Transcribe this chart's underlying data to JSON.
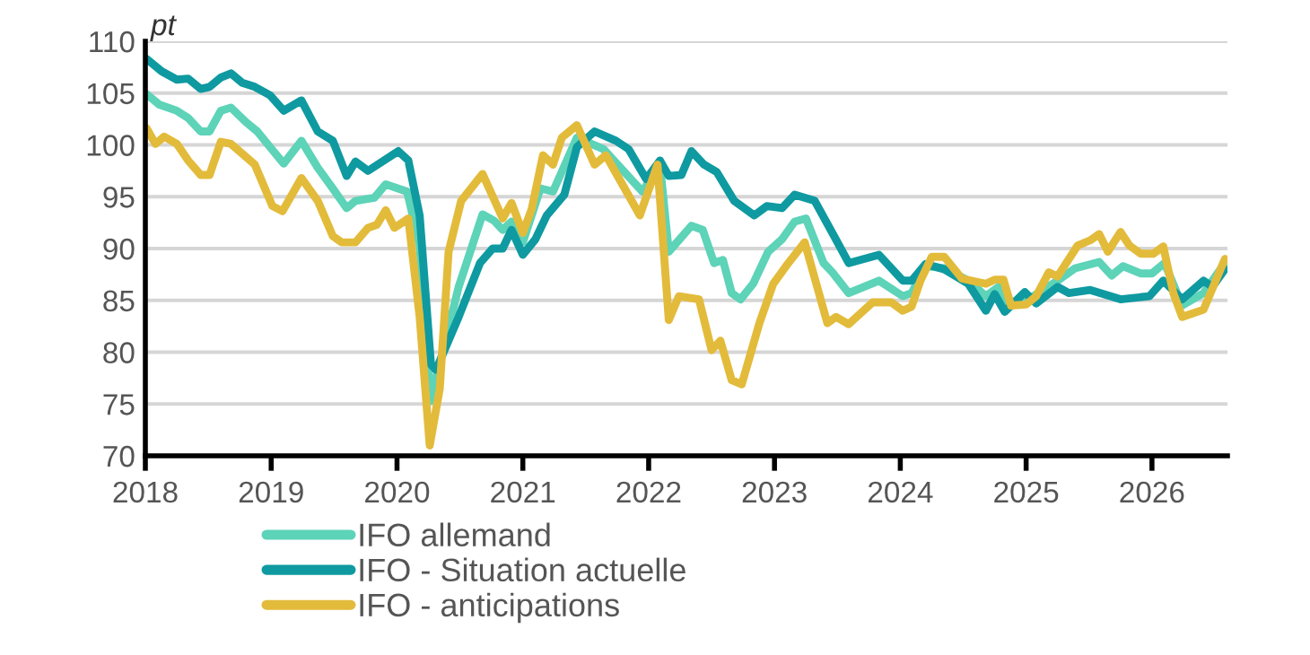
{
  "chart_data": {
    "type": "line",
    "ylabel": "pt",
    "xlim": [
      2018,
      2026.6
    ],
    "xticks": [
      {
        "value": 2018,
        "label": "2018"
      },
      {
        "value": 2019,
        "label": "2019"
      },
      {
        "value": 2020,
        "label": "2020"
      },
      {
        "value": 2021,
        "label": "2021"
      },
      {
        "value": 2022,
        "label": "2022"
      },
      {
        "value": 2023,
        "label": "2023"
      },
      {
        "value": 2024,
        "label": "2024"
      },
      {
        "value": 2025,
        "label": "2025"
      },
      {
        "value": 2026,
        "label": "2026"
      }
    ],
    "ylim": [
      70,
      110
    ],
    "yticks": [
      70,
      75,
      80,
      85,
      90,
      95,
      100,
      105,
      110
    ],
    "grid": "y",
    "legend": "bottom",
    "marker": "none",
    "line_style": "solid",
    "series": [
      {
        "name": "IFO allemand",
        "color": "#5dd3b8",
        "x": [
          2018.01,
          2018.11,
          2018.25,
          2018.34,
          2018.44,
          2018.51,
          2018.6,
          2018.68,
          2018.8,
          2018.89,
          2018.99,
          2019.1,
          2019.24,
          2019.37,
          2019.49,
          2019.6,
          2019.67,
          2019.82,
          2019.91,
          2020.08,
          2020.18,
          2020.27,
          2020.36,
          2020.49,
          2020.68,
          2020.77,
          2020.84,
          2020.91,
          2021.0,
          2021.14,
          2021.24,
          2021.43,
          2021.64,
          2021.95,
          2022.09,
          2022.16,
          2022.34,
          2022.43,
          2022.52,
          2022.59,
          2022.66,
          2022.73,
          2022.83,
          2022.95,
          2023.06,
          2023.16,
          2023.25,
          2023.39,
          2023.46,
          2023.59,
          2023.83,
          2024.02,
          2024.09,
          2024.2,
          2024.35,
          2024.54,
          2024.68,
          2024.78,
          2024.85,
          2025.02,
          2025.25,
          2025.39,
          2025.58,
          2025.68,
          2025.77,
          2025.91,
          2026.0,
          2026.1,
          2026.24,
          2026.41,
          2026.58
        ],
        "values": [
          104.9,
          103.9,
          103.3,
          102.6,
          101.3,
          101.3,
          103.3,
          103.6,
          102.2,
          101.3,
          99.8,
          98.2,
          100.4,
          97.8,
          95.8,
          93.9,
          94.6,
          94.9,
          96.2,
          95.5,
          90.3,
          75.3,
          79.9,
          86.3,
          93.3,
          92.7,
          91.8,
          92.6,
          90.6,
          95.8,
          95.5,
          100.7,
          99.6,
          95.5,
          98.1,
          89.7,
          92.2,
          91.8,
          88.6,
          88.9,
          85.7,
          85.1,
          86.6,
          89.7,
          90.9,
          92.6,
          92.9,
          88.6,
          87.7,
          85.7,
          86.9,
          85.4,
          85.7,
          88.3,
          88.1,
          86.9,
          85.4,
          86.3,
          84.8,
          85.1,
          86.9,
          88.1,
          88.7,
          87.4,
          88.3,
          87.6,
          87.6,
          88.6,
          84.5,
          85.7,
          88.6
        ]
      },
      {
        "name": "IFO - Situation actuelle",
        "color": "#0e9aa0",
        "x": [
          2018.01,
          2018.13,
          2018.25,
          2018.34,
          2018.44,
          2018.51,
          2018.6,
          2018.68,
          2018.77,
          2018.87,
          2018.99,
          2019.1,
          2019.24,
          2019.37,
          2019.49,
          2019.6,
          2019.67,
          2019.77,
          2020.01,
          2020.09,
          2020.18,
          2020.27,
          2020.31,
          2020.49,
          2020.66,
          2020.76,
          2020.84,
          2020.91,
          2021.0,
          2021.1,
          2021.19,
          2021.33,
          2021.43,
          2021.57,
          2021.74,
          2021.84,
          2021.98,
          2022.09,
          2022.16,
          2022.26,
          2022.34,
          2022.44,
          2022.54,
          2022.68,
          2022.84,
          2022.94,
          2023.06,
          2023.16,
          2023.32,
          2023.46,
          2023.59,
          2023.83,
          2024.02,
          2024.09,
          2024.2,
          2024.35,
          2024.54,
          2024.68,
          2024.75,
          2024.83,
          2024.99,
          2025.08,
          2025.25,
          2025.34,
          2025.51,
          2025.75,
          2025.98,
          2026.09,
          2026.24,
          2026.41,
          2026.48,
          2026.58
        ],
        "values": [
          108.3,
          107.1,
          106.3,
          106.4,
          105.4,
          105.6,
          106.5,
          106.9,
          106.0,
          105.6,
          104.8,
          103.3,
          104.3,
          101.3,
          100.4,
          97.0,
          98.4,
          97.5,
          99.4,
          98.5,
          93.2,
          78.8,
          78.3,
          83.4,
          88.6,
          90.0,
          90.0,
          91.8,
          89.4,
          90.9,
          93.2,
          95.2,
          99.8,
          101.3,
          100.4,
          99.6,
          96.7,
          98.5,
          97.0,
          97.1,
          99.4,
          98.1,
          97.4,
          94.6,
          93.2,
          94.1,
          93.9,
          95.2,
          94.6,
          91.5,
          88.6,
          89.4,
          86.9,
          86.9,
          88.5,
          88.0,
          86.6,
          84.0,
          85.6,
          83.9,
          85.8,
          84.7,
          86.3,
          85.7,
          86.0,
          85.1,
          85.4,
          86.9,
          85.1,
          86.9,
          86.3,
          88.0
        ]
      },
      {
        "name": "IFO - anticipations",
        "color": "#e3bb3b",
        "x": [
          2018.01,
          2018.08,
          2018.15,
          2018.25,
          2018.34,
          2018.44,
          2018.51,
          2018.6,
          2018.68,
          2018.87,
          2019.01,
          2019.09,
          2019.24,
          2019.37,
          2019.49,
          2019.56,
          2019.67,
          2019.77,
          2019.84,
          2019.91,
          2019.98,
          2020.09,
          2020.18,
          2020.26,
          2020.34,
          2020.41,
          2020.51,
          2020.68,
          2020.84,
          2020.91,
          2021.0,
          2021.07,
          2021.16,
          2021.24,
          2021.31,
          2021.43,
          2021.57,
          2021.66,
          2021.93,
          2022.07,
          2022.16,
          2022.24,
          2022.4,
          2022.5,
          2022.57,
          2022.66,
          2022.74,
          2022.88,
          2022.99,
          2023.11,
          2023.24,
          2023.3,
          2023.42,
          2023.49,
          2023.59,
          2023.78,
          2023.93,
          2024.02,
          2024.09,
          2024.16,
          2024.25,
          2024.35,
          2024.49,
          2024.68,
          2024.75,
          2024.82,
          2024.88,
          2025.0,
          2025.08,
          2025.18,
          2025.25,
          2025.41,
          2025.51,
          2025.58,
          2025.65,
          2025.75,
          2025.82,
          2025.91,
          2026.01,
          2026.09,
          2026.17,
          2026.24,
          2026.41,
          2026.58
        ],
        "values": [
          101.6,
          100.1,
          100.8,
          100.1,
          98.5,
          97.1,
          97.1,
          100.3,
          100.1,
          98.1,
          94.1,
          93.6,
          96.8,
          94.6,
          91.2,
          90.6,
          90.6,
          92.0,
          92.3,
          93.7,
          92.0,
          92.9,
          83.4,
          71.0,
          76.5,
          89.7,
          94.6,
          97.2,
          92.9,
          94.4,
          91.5,
          93.8,
          99.0,
          98.1,
          100.7,
          101.9,
          98.1,
          99.0,
          93.2,
          98.1,
          83.1,
          85.4,
          85.1,
          80.2,
          81.1,
          77.3,
          76.9,
          82.8,
          86.6,
          88.6,
          90.6,
          88.0,
          82.8,
          83.4,
          82.7,
          84.8,
          84.8,
          84.0,
          84.4,
          86.9,
          89.2,
          89.2,
          87.1,
          86.6,
          87.0,
          87.0,
          84.5,
          84.6,
          85.4,
          87.7,
          87.3,
          90.3,
          90.8,
          91.4,
          89.7,
          91.6,
          90.3,
          89.5,
          89.5,
          90.2,
          85.7,
          83.4,
          84.1,
          89.0
        ]
      }
    ]
  }
}
